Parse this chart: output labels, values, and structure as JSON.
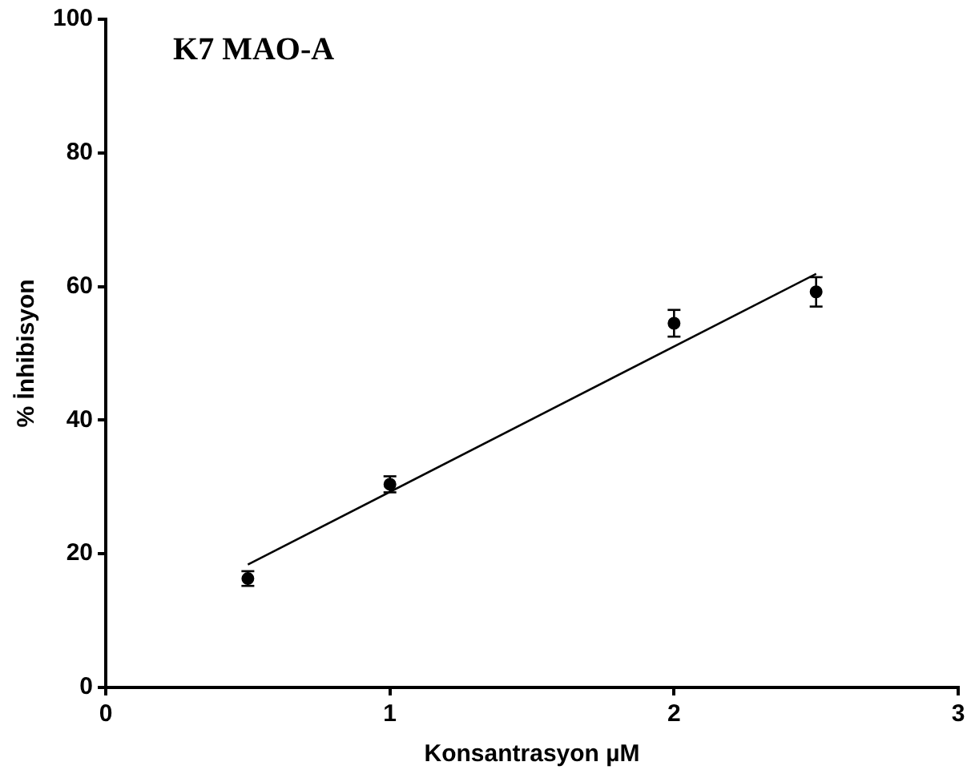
{
  "chart_data": {
    "type": "scatter",
    "title": "K7 MAO-A",
    "xlabel": "Konsantrasyon µM",
    "ylabel": "% İnhibisyon",
    "xlim": [
      0,
      3
    ],
    "xticks": [
      0,
      1,
      2,
      3
    ],
    "ylim": [
      0,
      100
    ],
    "yticks": [
      0,
      20,
      40,
      60,
      80,
      100
    ],
    "grid": false,
    "legend": false,
    "marker": "circle",
    "series": [
      {
        "type": "scatter",
        "color": "#000000",
        "x": [
          0.5,
          1,
          2,
          2.5
        ],
        "values": [
          16.3,
          30.4,
          54.5,
          59.2
        ],
        "errors": [
          1.1,
          1.2,
          2,
          2.2
        ]
      },
      {
        "type": "line",
        "color": "#000000",
        "x": [
          0.5,
          2.5
        ],
        "values": [
          18.4,
          61.9
        ],
        "marker": "none"
      }
    ]
  }
}
